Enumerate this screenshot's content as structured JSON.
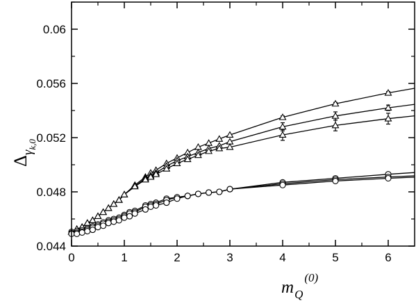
{
  "chart_data": {
    "type": "line",
    "xlabel": {
      "main": "m",
      "sub": "Q",
      "sup": "(0)"
    },
    "ylabel": {
      "main": "Δ",
      "sub": "γ",
      "subsub": "k,0"
    },
    "xlim": [
      0,
      6.5
    ],
    "ylim": [
      0.044,
      0.062
    ],
    "x_ticks": [
      0,
      1,
      2,
      3,
      4,
      5,
      6
    ],
    "x_tick_labels": [
      "0",
      "1",
      "2",
      "3",
      "4",
      "5",
      "6"
    ],
    "y_ticks": [
      0.044,
      0.048,
      0.052,
      0.056,
      0.06
    ],
    "y_tick_labels": [
      "0.044",
      "0.048",
      "0.052",
      "0.056",
      "0.06"
    ],
    "grid": false,
    "legend": "none",
    "colors": {
      "line": "#000000",
      "background": "#ffffff"
    },
    "series": [
      {
        "marker": "triangle",
        "x": [
          0,
          0.1,
          0.2,
          0.3,
          0.4,
          0.5,
          0.6,
          0.7,
          0.8,
          0.9,
          1.0,
          1.2,
          1.4,
          1.5,
          1.6,
          1.8,
          2.0,
          2.2,
          2.4,
          2.6,
          2.8,
          3.0,
          4.0,
          5.0,
          6.0
        ],
        "y": [
          0.04505,
          0.04525,
          0.0454,
          0.0457,
          0.0459,
          0.0462,
          0.0465,
          0.0468,
          0.0471,
          0.0474,
          0.0478,
          0.0485,
          0.0491,
          0.0494,
          0.0496,
          0.0501,
          0.0505,
          0.0509,
          0.0513,
          0.0516,
          0.0519,
          0.0522,
          0.0535,
          0.0545,
          0.0553
        ],
        "yerr": [
          0,
          0,
          0,
          0,
          0,
          0,
          0,
          0,
          0,
          0,
          0,
          0,
          0,
          0,
          0,
          0,
          0,
          0,
          0,
          0,
          0,
          0,
          0.0001,
          0.0001,
          0.0001
        ]
      },
      {
        "marker": "triangle",
        "x": [
          0,
          0.1,
          0.2,
          0.3,
          0.4,
          0.5,
          0.6,
          0.7,
          0.8,
          0.9,
          1.0,
          1.2,
          1.4,
          1.5,
          1.6,
          1.8,
          2.0,
          2.2,
          2.4,
          2.6,
          2.8,
          3.0,
          4.0,
          5.0,
          6.0
        ],
        "y": [
          0.04505,
          0.04525,
          0.0454,
          0.0457,
          0.0459,
          0.0462,
          0.0465,
          0.0468,
          0.0471,
          0.0474,
          0.0478,
          0.0484,
          0.049,
          0.0492,
          0.0494,
          0.0499,
          0.0503,
          0.0506,
          0.0509,
          0.0512,
          0.0514,
          0.0517,
          0.0528,
          0.0536,
          0.0542
        ],
        "yerr": [
          0,
          0,
          0,
          0,
          0,
          0,
          0,
          0,
          0,
          0,
          0,
          0,
          0,
          0,
          0,
          0,
          0,
          0,
          0,
          0,
          0,
          0,
          0.0003,
          0.0003,
          0.0002
        ]
      },
      {
        "marker": "triangle",
        "x": [
          0,
          0.1,
          0.2,
          0.3,
          0.4,
          0.5,
          0.6,
          0.7,
          0.8,
          0.9,
          1.0,
          1.2,
          1.4,
          1.5,
          1.6,
          1.8,
          2.0,
          2.2,
          2.4,
          2.6,
          2.8,
          3.0,
          4.0,
          5.0,
          6.0
        ],
        "y": [
          0.04505,
          0.04525,
          0.0454,
          0.0457,
          0.0459,
          0.0462,
          0.0465,
          0.0468,
          0.0471,
          0.0474,
          0.0478,
          0.0484,
          0.0489,
          0.0491,
          0.0493,
          0.0497,
          0.0501,
          0.0504,
          0.0507,
          0.051,
          0.0512,
          0.0513,
          0.0522,
          0.0529,
          0.0534
        ],
        "yerr": [
          0,
          0,
          0,
          0,
          0,
          0,
          0,
          0,
          0,
          0,
          0,
          0,
          0,
          0,
          0,
          0,
          0,
          0,
          0,
          0,
          0,
          0,
          0.0004,
          0.0004,
          0.0004
        ]
      },
      {
        "marker": "circle",
        "x": [
          0,
          0.1,
          0.2,
          0.3,
          0.4,
          0.5,
          0.6,
          0.7,
          0.8,
          0.9,
          1.0,
          1.1,
          1.2,
          1.4,
          1.5,
          1.6,
          1.8,
          2.0,
          2.2,
          2.4,
          2.6,
          2.8,
          3.0,
          4.0,
          5.0,
          6.0
        ],
        "y": [
          0.04505,
          0.04508,
          0.04515,
          0.0453,
          0.04545,
          0.0456,
          0.04575,
          0.0459,
          0.046,
          0.0461,
          0.0463,
          0.0465,
          0.0466,
          0.047,
          0.0471,
          0.0472,
          0.0475,
          0.0476,
          0.0477,
          0.04785,
          0.04795,
          0.048,
          0.0482,
          0.0487,
          0.049,
          0.0493
        ],
        "yerr": [
          0,
          0,
          0,
          0,
          0,
          0,
          0,
          0,
          0,
          0,
          0,
          0,
          0,
          0,
          0,
          0,
          0,
          0,
          0,
          0,
          0,
          0,
          0,
          0,
          0,
          0
        ]
      },
      {
        "marker": "circle",
        "x": [
          0,
          0.1,
          0.2,
          0.3,
          0.4,
          0.5,
          0.6,
          0.7,
          0.8,
          0.9,
          1.0,
          1.1,
          1.2,
          1.4,
          1.5,
          1.6,
          1.8,
          2.0,
          2.2,
          2.4,
          2.6,
          2.8,
          3.0,
          4.0,
          5.0,
          6.0
        ],
        "y": [
          0.04495,
          0.04498,
          0.04505,
          0.0452,
          0.04535,
          0.0455,
          0.04565,
          0.0458,
          0.0459,
          0.046,
          0.0462,
          0.0464,
          0.0465,
          0.0469,
          0.047,
          0.0471,
          0.0474,
          0.0476,
          0.0477,
          0.04785,
          0.04795,
          0.048,
          0.0482,
          0.0486,
          0.0489,
          0.0491
        ],
        "yerr": [
          0,
          0,
          0,
          0,
          0,
          0,
          0,
          0,
          0,
          0,
          0,
          0,
          0,
          0,
          0,
          0,
          0,
          0,
          0,
          0,
          0,
          0,
          0,
          0,
          0,
          0
        ]
      },
      {
        "marker": "circle",
        "x": [
          0,
          0.1,
          0.2,
          0.3,
          0.4,
          0.5,
          0.6,
          0.7,
          0.8,
          0.9,
          1.0,
          1.1,
          1.2,
          1.4,
          1.5,
          1.6,
          1.8,
          2.0,
          2.2,
          2.4,
          2.6,
          2.8,
          3.0,
          4.0,
          5.0,
          6.0
        ],
        "y": [
          0.0449,
          0.0449,
          0.045,
          0.0451,
          0.0452,
          0.0454,
          0.0455,
          0.0457,
          0.0458,
          0.0459,
          0.0461,
          0.0462,
          0.0464,
          0.0467,
          0.0469,
          0.047,
          0.0472,
          0.0475,
          0.0477,
          0.04785,
          0.04795,
          0.048,
          0.0482,
          0.0485,
          0.0488,
          0.049
        ],
        "yerr": [
          0,
          0,
          0,
          0,
          0,
          0,
          0,
          0,
          0,
          0,
          0,
          0,
          0,
          0,
          0,
          0,
          0,
          0,
          0,
          0,
          0,
          0,
          0,
          0,
          0,
          0
        ]
      }
    ]
  }
}
